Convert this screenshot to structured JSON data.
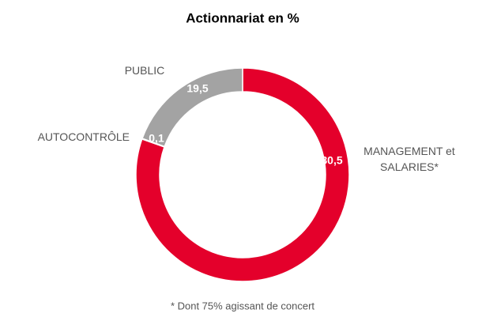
{
  "chart_data": {
    "type": "donut",
    "title": "Actionnariat en %",
    "categories": [
      "MANAGEMENT et SALARIES*",
      "AUTOCONTRÔLE",
      "PUBLIC"
    ],
    "values": [
      80.5,
      0.1,
      19.5
    ],
    "value_labels": [
      "80,5",
      "0,1",
      "19,5"
    ],
    "colors": [
      "#e4002b",
      "#d0d0d0",
      "#a3a3a3"
    ],
    "footnote": "* Dont 75% agissant de concert"
  }
}
